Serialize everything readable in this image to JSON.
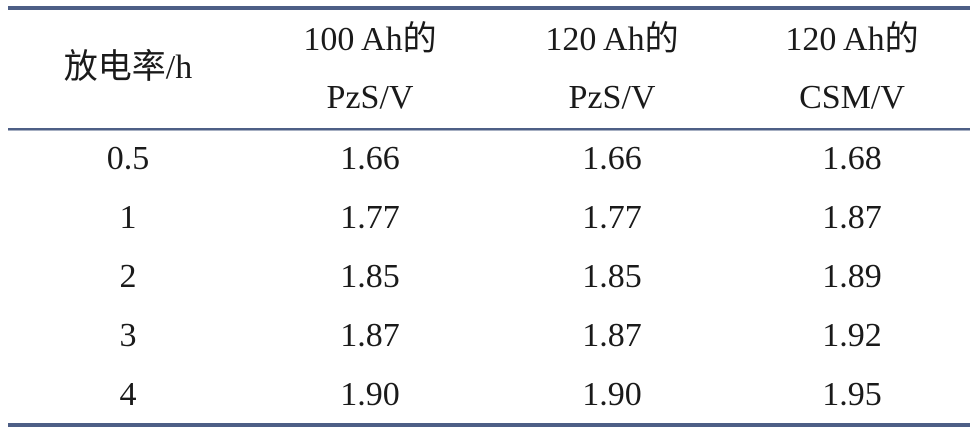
{
  "table": {
    "header": [
      [
        "放电率/h"
      ],
      [
        "100 Ah的",
        "PzS/V"
      ],
      [
        "120 Ah的",
        "PzS/V"
      ],
      [
        "120 Ah的",
        "CSM/V"
      ]
    ],
    "rows": [
      [
        "0.5",
        "1.66",
        "1.66",
        "1.68"
      ],
      [
        "1",
        "1.77",
        "1.77",
        "1.87"
      ],
      [
        "2",
        "1.85",
        "1.85",
        "1.89"
      ],
      [
        "3",
        "1.87",
        "1.87",
        "1.92"
      ],
      [
        "4",
        "1.90",
        "1.90",
        "1.95"
      ]
    ]
  }
}
